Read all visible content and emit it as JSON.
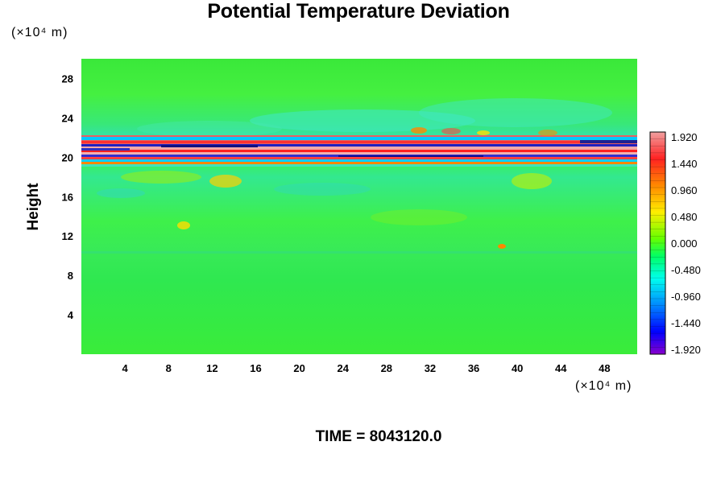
{
  "chart_data": {
    "type": "heatmap",
    "title": "Potential Temperature Deviation",
    "xlabel": "",
    "ylabel": "Height",
    "x_unit": "(×10⁴ m)",
    "y_unit": "(×10⁴ m)",
    "x_ticks": [
      "4",
      "8",
      "12",
      "16",
      "20",
      "24",
      "28",
      "32",
      "36",
      "40",
      "44",
      "48"
    ],
    "y_ticks": [
      "4",
      "8",
      "12",
      "16",
      "20",
      "24",
      "28"
    ],
    "xlim": [
      0,
      51
    ],
    "ylim": [
      0,
      30
    ],
    "colorbar": {
      "labels": [
        "1.920",
        "1.440",
        "0.960",
        "0.480",
        "0.000",
        "-0.480",
        "-0.960",
        "-1.440",
        "-1.920"
      ],
      "range": [
        -1.92,
        1.92
      ],
      "colors_high_to_low": [
        "#f0a0a0",
        "#ff0000",
        "#ff8800",
        "#ffee00",
        "#66ff00",
        "#00ff66",
        "#00ffee",
        "#0088ff",
        "#0000ff",
        "#8800cc"
      ]
    },
    "grid": false,
    "annotation": "TIME = 8043120.0"
  }
}
